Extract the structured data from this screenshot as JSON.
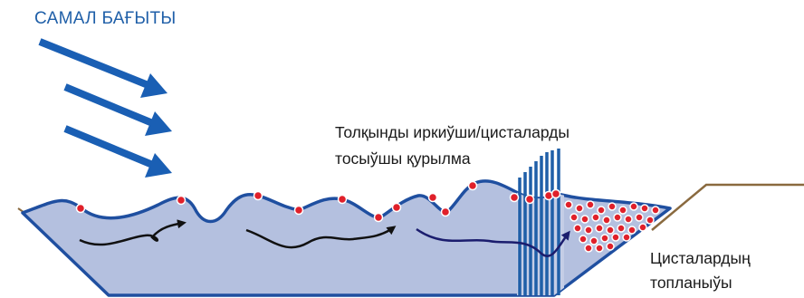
{
  "labels": {
    "wind_direction": "САМАЛ БАҒЫТЫ",
    "barrier_line1": "Толқынды иркиўши/цисталарды",
    "barrier_line2": "тосыўшы қурылма",
    "accumulation_line1": "Цисталардың",
    "accumulation_line2": "топланыўы"
  },
  "colors": {
    "wind_arrow": "#1a5fb4",
    "title_text": "#1f5fa8",
    "water_fill": "#b4c0df",
    "water_outline": "#1f4fa0",
    "bank": "#8a6a3f",
    "barrier": "#1f5fa8",
    "cyst": "#e0202a",
    "current_dark": "#111111",
    "current_navy": "#1b1d6e"
  },
  "icons": {
    "wind_arrows": "arrow-diagonal-down-right",
    "cysts": "red-dot",
    "currents": "curved-arrow-right"
  }
}
